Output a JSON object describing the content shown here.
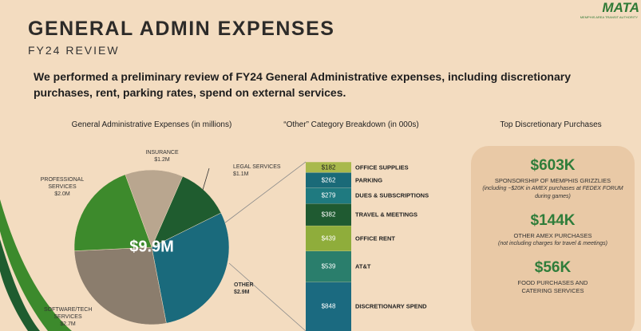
{
  "header": {
    "title": "GENERAL ADMIN EXPENSES",
    "subtitle": "FY24 REVIEW",
    "summary": "We performed a preliminary review of FY24 General Administrative expenses, including discretionary purchases, rent, parking rates, spend on external services.",
    "logo": "MATA",
    "logo_sub": "MEMPHIS AREA TRANSIT AUTHORITY"
  },
  "chart_data": [
    {
      "type": "pie",
      "title": "General Administrative Expenses (in millions)",
      "center_label": "$9.9M",
      "categories": [
        "INSURANCE",
        "LEGAL SERVICES",
        "OTHER",
        "SOFTWARE/TECH SERVICES",
        "PROFESSIONAL SERVICES"
      ],
      "values": [
        1.2,
        1.1,
        2.9,
        2.7,
        2.0
      ],
      "value_labels": [
        "$1.2M",
        "$1.1M",
        "$2.9M",
        "$2.7M",
        "$2.0M"
      ],
      "colors": [
        "#b9a68f",
        "#1f5c2f",
        "#1a6a7c",
        "#8b7d6d",
        "#3d8a2c"
      ]
    },
    {
      "type": "stacked_bar",
      "title": "“Other” Category Breakdown (in 000s)",
      "categories": [
        "DISCRETIONARY SPEND",
        "AT&T",
        "OFFICE RENT",
        "TRAVEL & MEETINGS",
        "DUES & SUBSCRIPTIONS",
        "PARKING",
        "OFFICE SUPPLIES"
      ],
      "values": [
        848,
        539,
        439,
        382,
        279,
        262,
        182
      ],
      "value_labels": [
        "$848",
        "$539",
        "$439",
        "$382",
        "$279",
        "$262",
        "$182"
      ],
      "colors": [
        "#1b6a80",
        "#2a7e6c",
        "#8fad3b",
        "#1f5a31",
        "#1f7a80",
        "#1a6a78",
        "#a9b94c"
      ]
    }
  ],
  "panel": {
    "title": "Top Discretionary Purchases",
    "items": [
      {
        "amount": "$603K",
        "title": "SPONSORSHIP OF MEMPHIS GRIZZLIES",
        "note": "(including ~$20K in AMEX purchases at FEDEX FORUM during games)"
      },
      {
        "amount": "$144K",
        "title": "OTHER AMEX PURCHASES",
        "note": "(not including charges for travel & meetings)"
      },
      {
        "amount": "$56K",
        "title": "FOOD PURCHASES AND CATERING SERVICES"
      }
    ]
  }
}
